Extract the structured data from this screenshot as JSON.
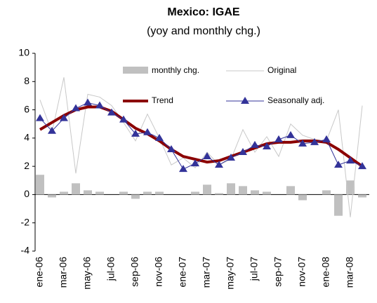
{
  "chart_data": {
    "type": "line",
    "title": "Mexico: IGAE",
    "subtitle": "(yoy and monthly chg.)",
    "categories": [
      "ene-06",
      null,
      "mar-06",
      null,
      "may-06",
      null,
      "jul-06",
      null,
      "sep-06",
      null,
      "nov-06",
      null,
      "ene-07",
      null,
      "mar-07",
      null,
      "may-07",
      null,
      "jul-07",
      null,
      "sep-07",
      null,
      "nov-07",
      null,
      "ene-08",
      null,
      "mar-08",
      null
    ],
    "series": [
      {
        "name": "monthly chg.",
        "type": "bar",
        "color": "#c0c0c0",
        "values": [
          1.4,
          -0.2,
          0.2,
          0.8,
          0.3,
          0.2,
          0,
          0.2,
          -0.3,
          0.2,
          0.2,
          0,
          0,
          0.2,
          0.7,
          0.1,
          0.8,
          0.6,
          0.3,
          0.2,
          0,
          0.6,
          -0.4,
          0,
          0.3,
          -1.5,
          1.0,
          -0.2
        ]
      },
      {
        "name": "Original",
        "type": "line",
        "color": "#c8c8c8",
        "values": [
          6.7,
          4.4,
          8.3,
          1.5,
          7.1,
          6.9,
          6.3,
          5.1,
          3.8,
          5.7,
          4.0,
          2.1,
          2.6,
          1.9,
          3.0,
          2.1,
          2.5,
          4.6,
          3.0,
          4.1,
          2.7,
          5.0,
          4.2,
          3.9,
          3.8,
          6.0,
          -1.6,
          6.3
        ]
      },
      {
        "name": "Trend",
        "type": "line",
        "color": "#8b0000",
        "values": [
          4.6,
          5.1,
          5.6,
          6.0,
          6.2,
          6.2,
          5.9,
          5.3,
          4.7,
          4.3,
          3.8,
          3.2,
          2.7,
          2.5,
          2.3,
          2.4,
          2.7,
          3.0,
          3.3,
          3.6,
          3.7,
          3.7,
          3.8,
          3.8,
          3.7,
          3.2,
          2.6,
          2.0
        ]
      },
      {
        "name": "Seasonally adj.",
        "type": "line",
        "marker": "triangle",
        "color": "#333399",
        "values": [
          5.4,
          4.5,
          5.4,
          6.1,
          6.5,
          6.3,
          5.8,
          5.3,
          4.3,
          4.4,
          4.0,
          3.2,
          1.8,
          2.2,
          2.7,
          2.1,
          2.6,
          3.0,
          3.5,
          3.4,
          3.9,
          4.2,
          3.6,
          3.7,
          3.9,
          2.1,
          2.4,
          2.0
        ]
      }
    ],
    "ylim": [
      -4,
      10
    ],
    "yticks": [
      -4,
      -2,
      0,
      2,
      4,
      6,
      8,
      10
    ]
  }
}
